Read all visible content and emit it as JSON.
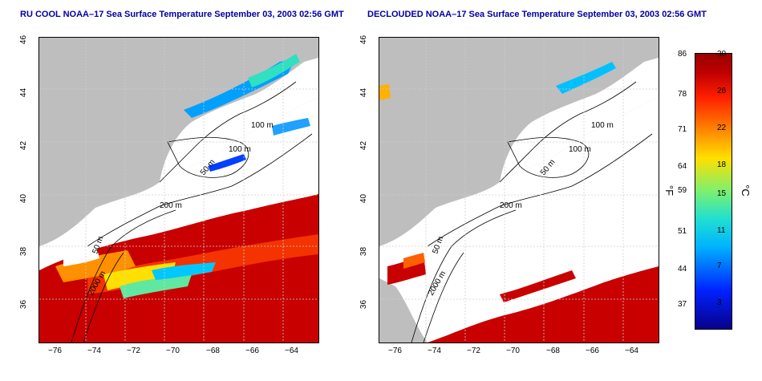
{
  "panels": [
    {
      "title": "RU COOL NOAA–17 Sea Surface Temperature September 03, 2003 02:56 GMT",
      "contour_labels": [
        "100 m",
        "100 m",
        "50 m",
        "200 m",
        "50 m",
        "2000 m"
      ]
    },
    {
      "title": "DECLOUDED NOAA–17 Sea Surface Temperature September 03, 2003 02:56 GMT",
      "contour_labels": [
        "100 m",
        "100 m",
        "50 m",
        "200 m",
        "50 m",
        "2000 m"
      ]
    }
  ],
  "axes": {
    "x_ticks": [
      "−76",
      "−74",
      "−72",
      "−70",
      "−68",
      "−66",
      "−64"
    ],
    "y_ticks": [
      "46",
      "44",
      "42",
      "40",
      "38",
      "36"
    ]
  },
  "colorbar": {
    "fahrenheit_ticks": [
      "86",
      "78",
      "71",
      "64",
      "59",
      "51",
      "44",
      "37"
    ],
    "celsius_ticks": [
      "30",
      "26",
      "22",
      "18",
      "15",
      "11",
      "7",
      "3"
    ],
    "left_unit": "°F",
    "right_unit": "°C",
    "colors": [
      "#08008a",
      "#0022ff",
      "#00b4ff",
      "#20e0d0",
      "#7cf070",
      "#ffe000",
      "#ff8800",
      "#ff2000",
      "#c00000",
      "#980000"
    ]
  },
  "colors": {
    "land": "#bebebe",
    "cloud": "#ffffff",
    "title": "#0000a0",
    "warm_water": "#c80000"
  }
}
